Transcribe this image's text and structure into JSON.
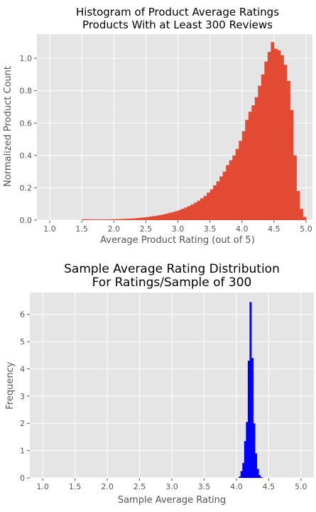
{
  "chart_data": [
    {
      "type": "bar",
      "style": "histogram",
      "title": "Histogram of Product Average Ratings",
      "subtitle": "Products With at Least 300 Reviews",
      "xlabel": "Average Product Rating (out of 5)",
      "ylabel": "Normalized Product Count",
      "xlim": [
        0.8,
        5.1
      ],
      "ylim": [
        0,
        1.15
      ],
      "xticks": [
        "1.0",
        "1.5",
        "2.0",
        "2.5",
        "3.0",
        "3.5",
        "4.0",
        "4.5",
        "5.0"
      ],
      "yticks": [
        "0.0",
        "0.2",
        "0.4",
        "0.6",
        "0.8",
        "1.0"
      ],
      "grid": true,
      "bar_color": "#e24a33",
      "bin_width": 0.05,
      "bins": [
        [
          1.5,
          0.005
        ],
        [
          1.55,
          0.005
        ],
        [
          1.6,
          0.004
        ],
        [
          1.65,
          0.004
        ],
        [
          1.7,
          0.004
        ],
        [
          1.75,
          0.004
        ],
        [
          1.8,
          0.004
        ],
        [
          1.85,
          0.004
        ],
        [
          1.9,
          0.005
        ],
        [
          1.95,
          0.005
        ],
        [
          2.0,
          0.006
        ],
        [
          2.05,
          0.006
        ],
        [
          2.1,
          0.007
        ],
        [
          2.15,
          0.008
        ],
        [
          2.2,
          0.009
        ],
        [
          2.25,
          0.01
        ],
        [
          2.3,
          0.011
        ],
        [
          2.35,
          0.013
        ],
        [
          2.4,
          0.015
        ],
        [
          2.45,
          0.017
        ],
        [
          2.5,
          0.019
        ],
        [
          2.55,
          0.022
        ],
        [
          2.6,
          0.025
        ],
        [
          2.65,
          0.028
        ],
        [
          2.7,
          0.031
        ],
        [
          2.75,
          0.035
        ],
        [
          2.8,
          0.04
        ],
        [
          2.85,
          0.045
        ],
        [
          2.9,
          0.05
        ],
        [
          2.95,
          0.055
        ],
        [
          3.0,
          0.062
        ],
        [
          3.05,
          0.07
        ],
        [
          3.1,
          0.078
        ],
        [
          3.15,
          0.087
        ],
        [
          3.2,
          0.097
        ],
        [
          3.25,
          0.108
        ],
        [
          3.3,
          0.12
        ],
        [
          3.35,
          0.135
        ],
        [
          3.4,
          0.15
        ],
        [
          3.45,
          0.17
        ],
        [
          3.5,
          0.19
        ],
        [
          3.55,
          0.215
        ],
        [
          3.6,
          0.24
        ],
        [
          3.65,
          0.27
        ],
        [
          3.7,
          0.3
        ],
        [
          3.75,
          0.34
        ],
        [
          3.8,
          0.37
        ],
        [
          3.85,
          0.4
        ],
        [
          3.9,
          0.44
        ],
        [
          3.95,
          0.49
        ],
        [
          4.0,
          0.55
        ],
        [
          4.05,
          0.62
        ],
        [
          4.1,
          0.67
        ],
        [
          4.15,
          0.71
        ],
        [
          4.2,
          0.76
        ],
        [
          4.25,
          0.83
        ],
        [
          4.3,
          0.9
        ],
        [
          4.35,
          0.98
        ],
        [
          4.4,
          1.04
        ],
        [
          4.45,
          1.1
        ],
        [
          4.5,
          1.06
        ],
        [
          4.55,
          1.05
        ],
        [
          4.6,
          1.02
        ],
        [
          4.65,
          0.96
        ],
        [
          4.7,
          0.86
        ],
        [
          4.75,
          0.68
        ],
        [
          4.8,
          0.4
        ],
        [
          4.85,
          0.18
        ],
        [
          4.9,
          0.07
        ],
        [
          4.95,
          0.02
        ]
      ]
    },
    {
      "type": "bar",
      "style": "histogram",
      "title": "Sample Average Rating Distribution",
      "subtitle": "For Ratings/Sample of 300",
      "xlabel": "Sample Average Rating",
      "ylabel": "Frequency",
      "xlim": [
        0.8,
        5.2
      ],
      "ylim": [
        0,
        6.8
      ],
      "xticks": [
        "1.0",
        "1.5",
        "2.0",
        "2.5",
        "3.0",
        "3.5",
        "4.0",
        "4.5",
        "5.0"
      ],
      "yticks": [
        "0",
        "1",
        "2",
        "3",
        "4",
        "5",
        "6"
      ],
      "grid": true,
      "bar_color": "#0000ff",
      "bin_width": 0.028,
      "bins": [
        [
          4.036,
          0.05
        ],
        [
          4.064,
          0.25
        ],
        [
          4.092,
          0.55
        ],
        [
          4.12,
          1.35
        ],
        [
          4.148,
          2.05
        ],
        [
          4.176,
          4.3
        ],
        [
          4.204,
          6.45
        ],
        [
          4.232,
          4.4
        ],
        [
          4.26,
          2.0
        ],
        [
          4.288,
          0.9
        ],
        [
          4.316,
          0.33
        ],
        [
          4.344,
          0.1
        ],
        [
          4.372,
          0.03
        ]
      ]
    }
  ]
}
